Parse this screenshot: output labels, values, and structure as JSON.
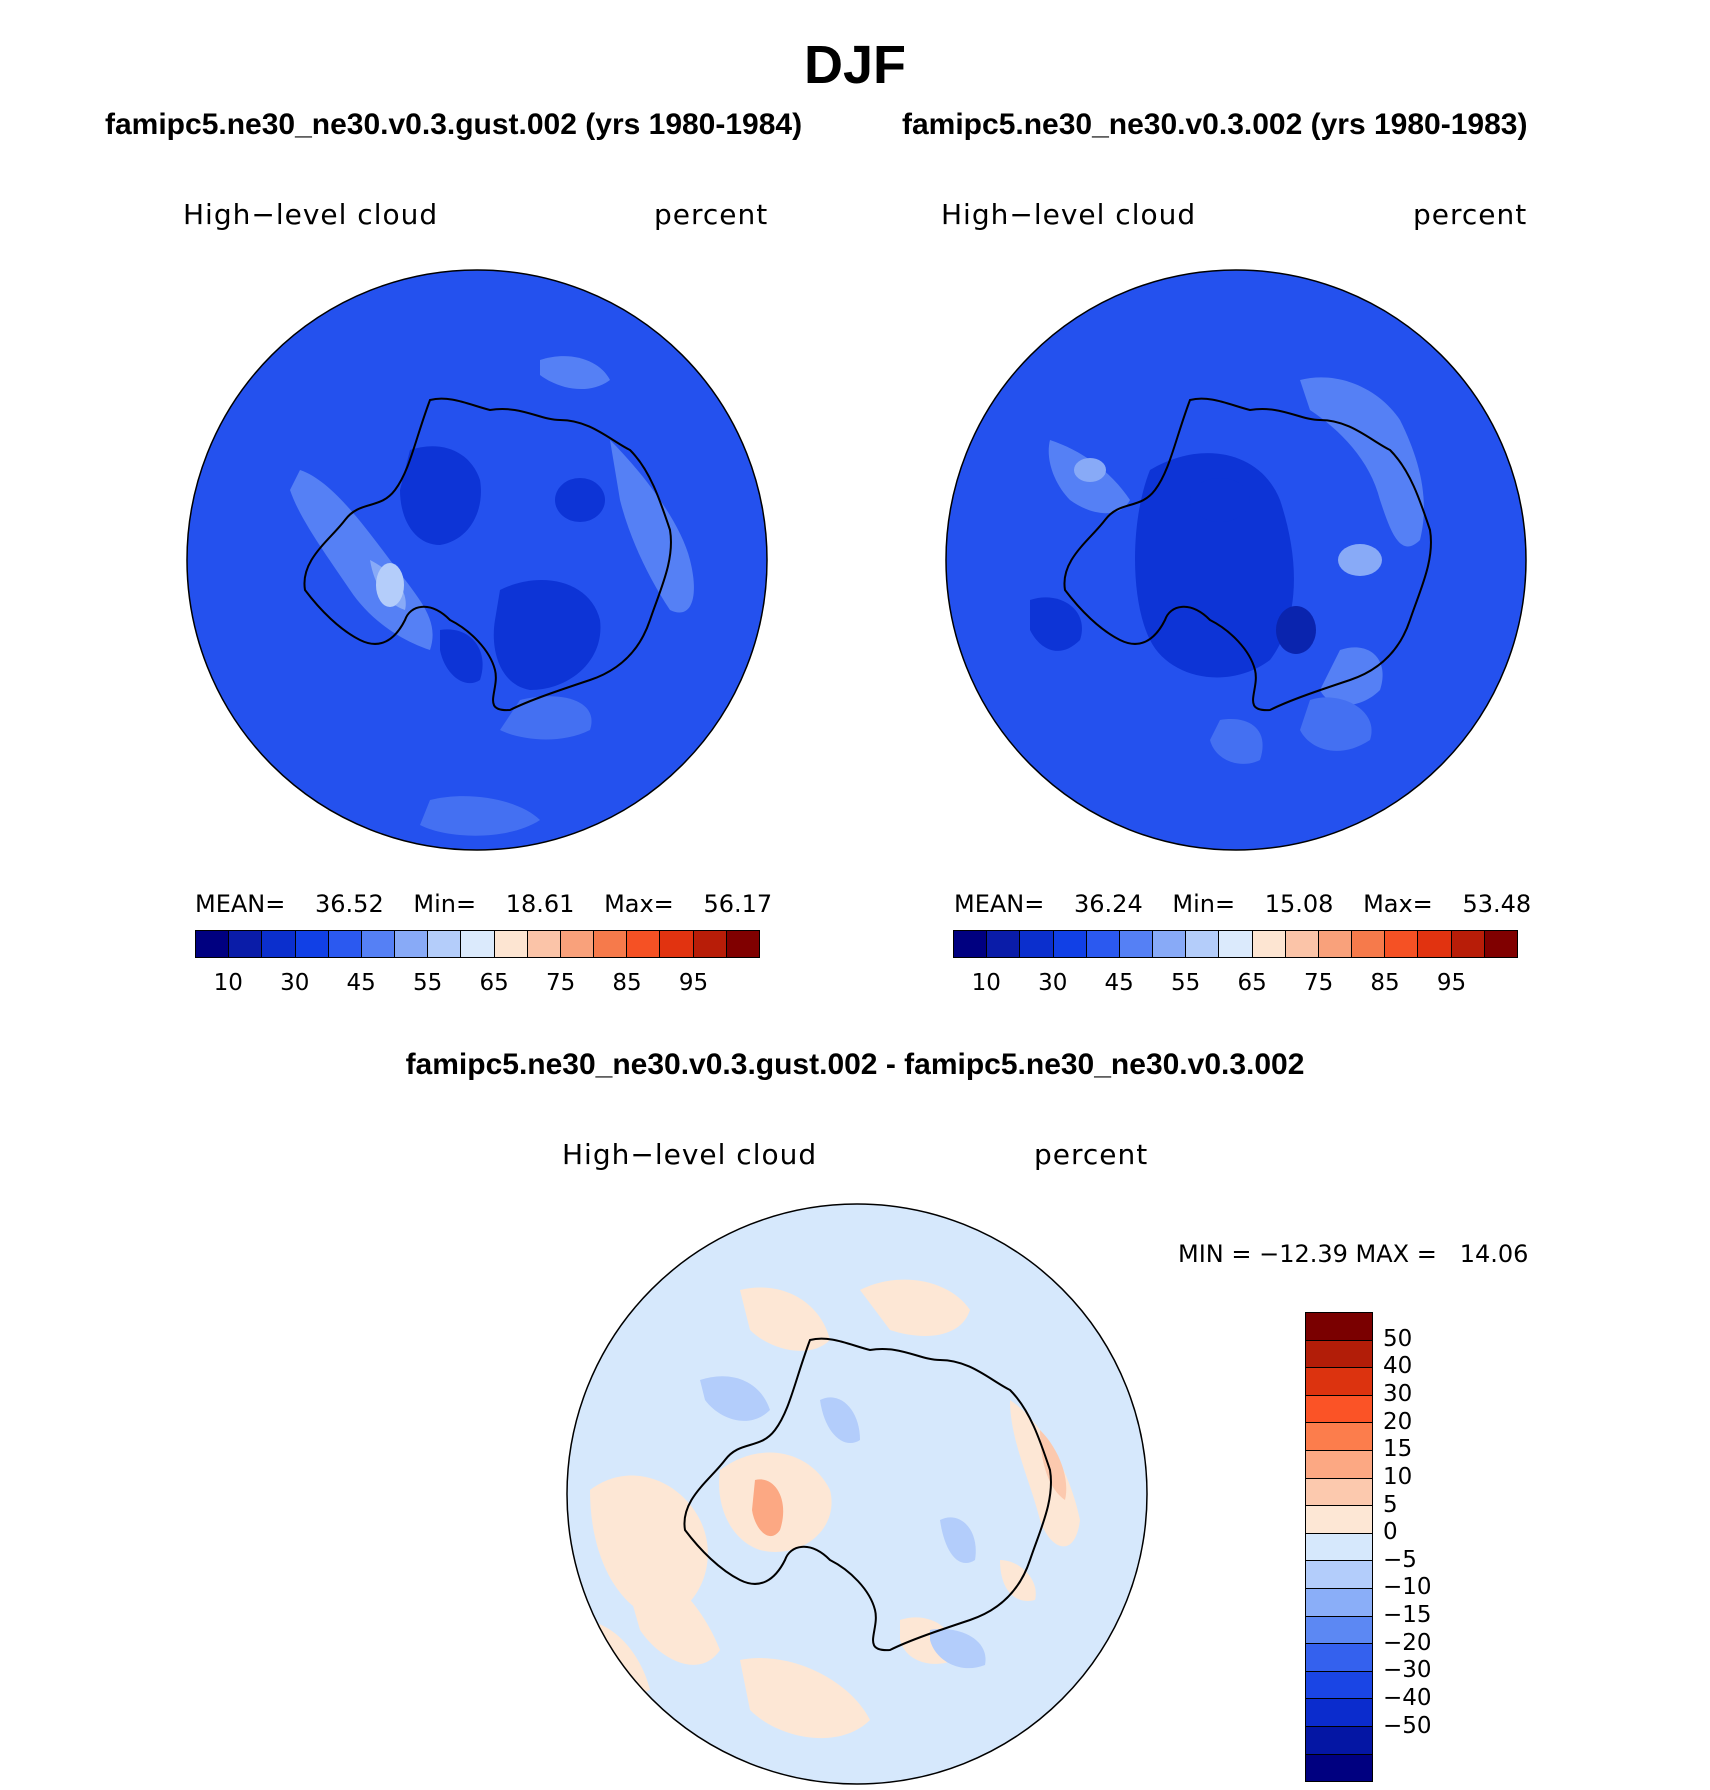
{
  "title": "DJF",
  "panels": [
    {
      "case": "famipc5.ne30_ne30.v0.3.gust.002 (yrs 1980-1984)",
      "variable": "High−level cloud",
      "units": "percent",
      "stats": {
        "mean_label": "MEAN=",
        "mean": "36.52",
        "min_label": "Min=",
        "min": "18.61",
        "max_label": "Max=",
        "max": "56.17"
      }
    },
    {
      "case": "famipc5.ne30_ne30.v0.3.002 (yrs 1980-1983)",
      "variable": "High−level cloud",
      "units": "percent",
      "stats": {
        "mean_label": "MEAN=",
        "mean": "36.24",
        "min_label": "Min=",
        "min": "15.08",
        "max_label": "Max=",
        "max": "53.48"
      }
    },
    {
      "case": "famipc5.ne30_ne30.v0.3.gust.002 - famipc5.ne30_ne30.v0.3.002",
      "variable": "High−level cloud",
      "units": "percent",
      "stats": {
        "text": "MIN = −12.39 MAX =   14.06"
      }
    }
  ],
  "abs_colorbar": {
    "colors": [
      "#000080",
      "#0a1ca8",
      "#0b2fcd",
      "#1140e6",
      "#2b59f0",
      "#5580f5",
      "#88aaf7",
      "#b4cdfa",
      "#dbeafc",
      "#fde5d2",
      "#fbc4a8",
      "#f9a17b",
      "#f67a4b",
      "#f55124",
      "#e13310",
      "#b81d08",
      "#800000"
    ],
    "tick_labels": [
      "10",
      "30",
      "45",
      "55",
      "65",
      "75",
      "85",
      "95"
    ]
  },
  "diff_colorbar": {
    "colors_top_to_bottom": [
      "#7a0000",
      "#b21d08",
      "#dc330f",
      "#fb5326",
      "#fc7d4c",
      "#fca883",
      "#fcc9ae",
      "#fde7d5",
      "#d6e8fc",
      "#b3cdfb",
      "#8aaef8",
      "#5c88f3",
      "#3461ee",
      "#1a45e5",
      "#0b2ccd",
      "#0416a4",
      "#000080"
    ],
    "tick_labels": [
      "50",
      "40",
      "30",
      "20",
      "15",
      "10",
      "5",
      "0",
      "−5",
      "−10",
      "−15",
      "−20",
      "−30",
      "−40",
      "−50"
    ]
  },
  "chart_data": [
    {
      "type": "heatmap",
      "projection": "south polar stereographic",
      "title": "famipc5.ne30_ne30.v0.3.gust.002 (yrs 1980-1984)",
      "variable": "High−level cloud",
      "units": "percent",
      "mean": 36.52,
      "min": 18.61,
      "max": 56.17,
      "levels": [
        10,
        15,
        20,
        25,
        30,
        35,
        40,
        45,
        50,
        55,
        60,
        65,
        70,
        75,
        80,
        85,
        90,
        95
      ],
      "dominant_value_range": [
        35,
        40
      ]
    },
    {
      "type": "heatmap",
      "projection": "south polar stereographic",
      "title": "famipc5.ne30_ne30.v0.3.002 (yrs 1980-1983)",
      "variable": "High−level cloud",
      "units": "percent",
      "mean": 36.24,
      "min": 15.08,
      "max": 53.48,
      "levels": [
        10,
        15,
        20,
        25,
        30,
        35,
        40,
        45,
        50,
        55,
        60,
        65,
        70,
        75,
        80,
        85,
        90,
        95
      ],
      "dominant_value_range": [
        35,
        40
      ]
    },
    {
      "type": "heatmap",
      "projection": "south polar stereographic",
      "title": "famipc5.ne30_ne30.v0.3.gust.002 - famipc5.ne30_ne30.v0.3.002",
      "variable": "High−level cloud",
      "units": "percent",
      "min": -12.39,
      "max": 14.06,
      "levels": [
        -50,
        -40,
        -30,
        -20,
        -15,
        -10,
        -5,
        0,
        5,
        10,
        15,
        20,
        30,
        40,
        50
      ],
      "dominant_value_range": [
        -5,
        5
      ]
    }
  ]
}
